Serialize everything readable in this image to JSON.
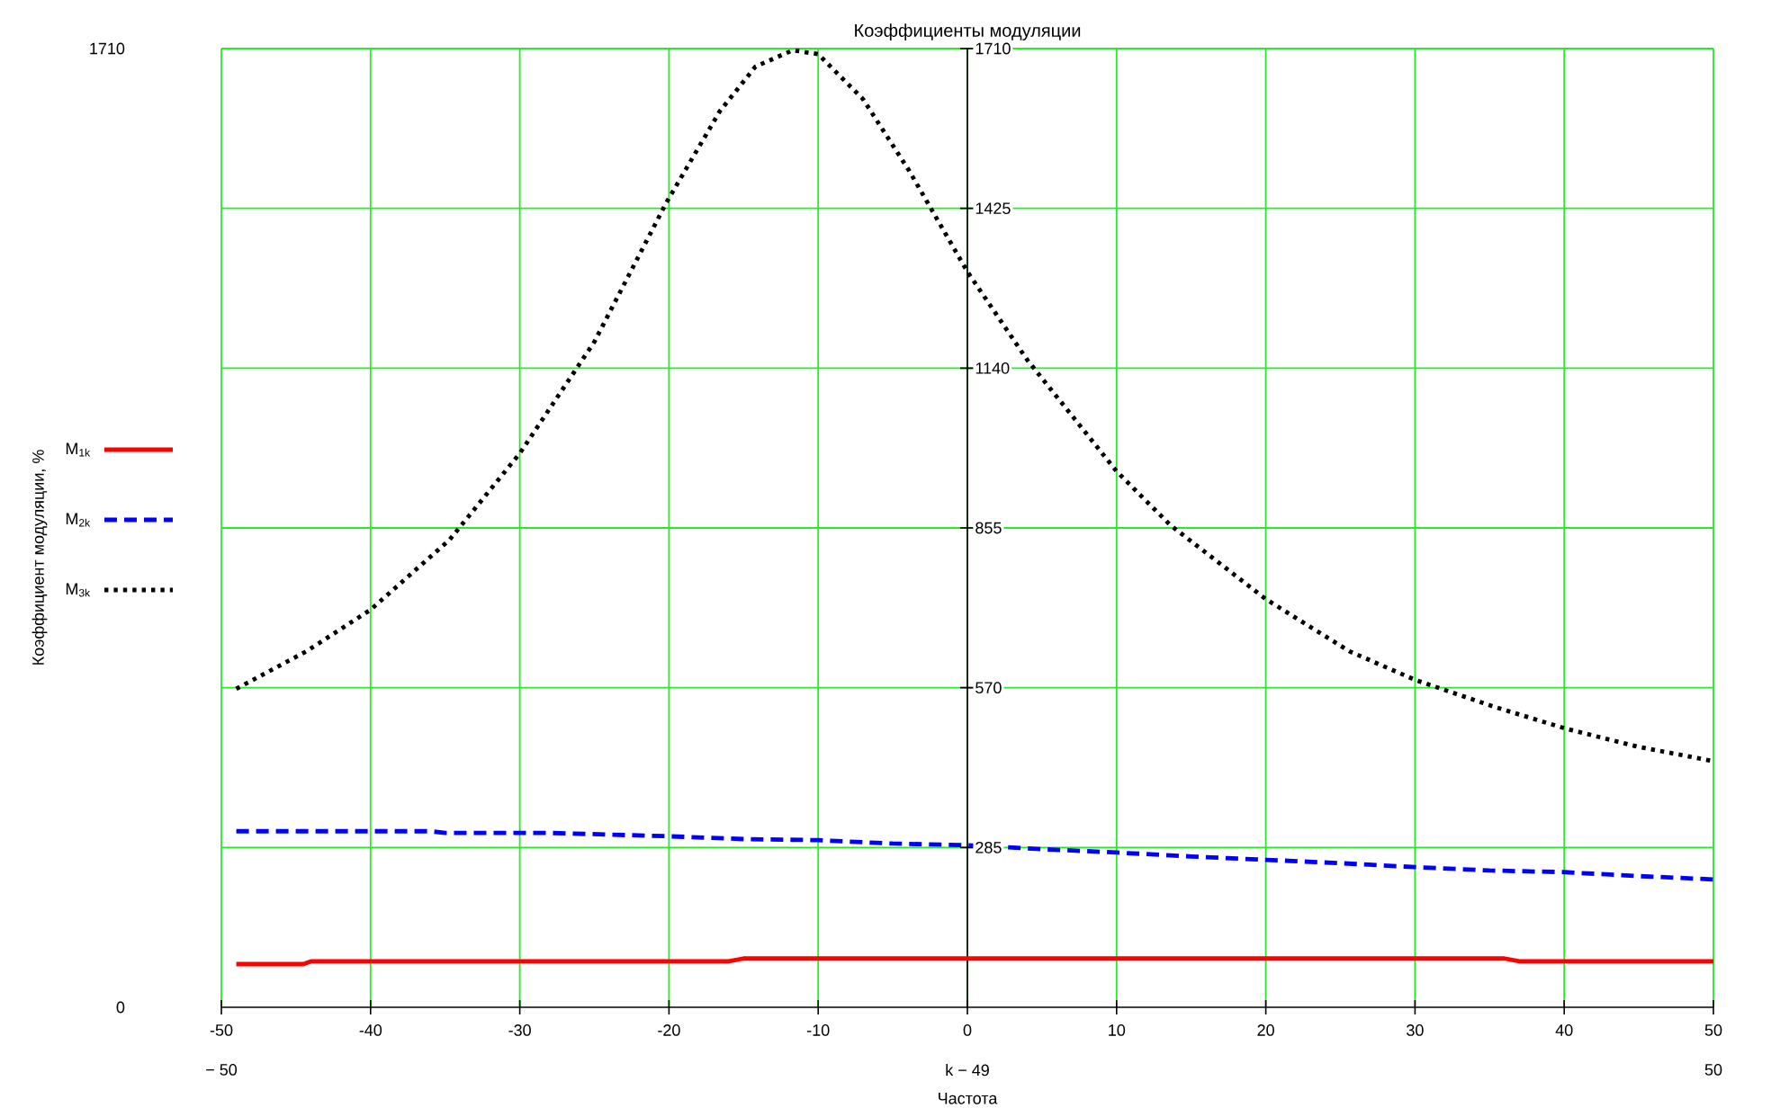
{
  "chart_data": {
    "type": "line",
    "title": "Коэффициенты модуляции",
    "xlabel": "Частота",
    "x2label": "k − 49",
    "ylabel": "Коэффициент модуляции, %",
    "xlim": [
      -50,
      50
    ],
    "xticks": [
      -50,
      -40,
      -30,
      -20,
      -10,
      0,
      10,
      20,
      30,
      40,
      50
    ],
    "x2lim": [
      -50,
      50
    ],
    "x2ticks": [
      {
        "value": -50,
        "label": "− 50"
      },
      50
    ],
    "ylim": [
      0,
      1710
    ],
    "yticks": [
      0,
      1710
    ],
    "y2lim": [
      0,
      1710
    ],
    "y2ticks": [
      285,
      570,
      855,
      1140,
      1425,
      1710
    ],
    "grid": true,
    "legend": "left",
    "series": [
      {
        "name": "M$_{1k}$",
        "color": "#ff0000",
        "line_style": "solid",
        "x": [
          -49,
          -44.5,
          -44,
          -16,
          -15,
          36,
          37,
          50
        ],
        "values": [
          77,
          77,
          82,
          82,
          87,
          87,
          82,
          82
        ]
      },
      {
        "name": "M$_{2k}$",
        "color": "#0000ff",
        "line_style": "dashed",
        "x": [
          -49,
          -36,
          -35,
          -28,
          -20,
          -15,
          -10,
          -5,
          0,
          5,
          10,
          15,
          20,
          25,
          30,
          35,
          40,
          45,
          50
        ],
        "values": [
          314,
          314,
          311,
          311,
          305,
          300,
          298,
          292,
          289,
          282,
          276,
          269,
          263,
          257,
          250,
          244,
          241,
          234,
          228
        ]
      },
      {
        "name": "M$_{3k}$",
        "color": "#000000",
        "line_style": "dotted",
        "x": [
          -49,
          -44.3,
          -40,
          -34.7,
          -30,
          -25,
          -20.2,
          -16.6,
          -14.2,
          -11.7,
          -10,
          -7,
          -3.9,
          0,
          4,
          10,
          13.6,
          20,
          25.6,
          30,
          35.3,
          40.1,
          44.9,
          50
        ],
        "values": [
          568,
          635,
          709,
          834,
          988,
          1187,
          1434,
          1598,
          1678,
          1707,
          1700,
          1620,
          1492,
          1312,
          1155,
          956,
          860,
          728,
          635,
          584,
          536,
          497,
          465,
          439
        ]
      }
    ]
  }
}
